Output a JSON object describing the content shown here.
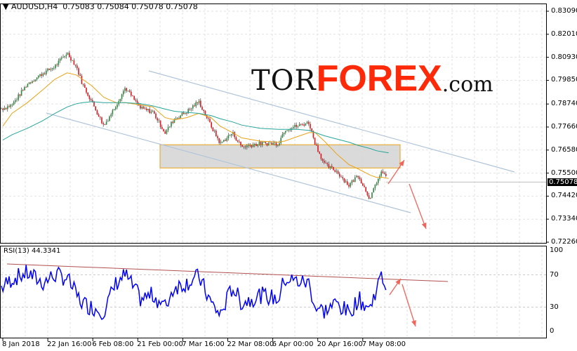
{
  "header": {
    "symbol": "AUDUSD,H4",
    "open": "0.75083",
    "high": "0.75084",
    "low": "0.75078",
    "close": "0.75078"
  },
  "logo": {
    "part1": "TOR",
    "part2": "FOREX",
    "part3": ".com"
  },
  "current_price": "0.75078",
  "rsi": {
    "label": "RSI(13) 44.3341"
  },
  "colors": {
    "bull": "#2b8a3a",
    "bear": "#e0141b",
    "ma_fast": "#e8a317",
    "ma_slow": "#27a59a",
    "channel": "#b0c4d8",
    "zone": "#d4d4d4",
    "zone_border": "#e8a317",
    "arrow": "#f0645a",
    "rsi_line": "#0000ff",
    "rsi_trend": "#b05050"
  },
  "chart_data": {
    "type": "candlestick",
    "price_axis": {
      "ticks": [
        "0.83090",
        "0.82010",
        "0.80930",
        "0.79850",
        "0.78740",
        "0.77660",
        "0.76580",
        "0.75500",
        "0.74420",
        "0.73340",
        "0.72260"
      ],
      "ylim": [
        0.7226,
        0.8309
      ]
    },
    "time_axis": {
      "ticks": [
        "8 Jan 2018",
        "22 Jan 16:00",
        "6 Feb 08:00",
        "21 Feb 00:00",
        "7 Mar 16:00",
        "22 Mar 08:00",
        "6 Apr 00:00",
        "20 Apr 16:00",
        "7 May 08:00"
      ]
    },
    "dates": [
      "2018-01-08",
      "2018-01-11",
      "2018-01-16",
      "2018-01-21",
      "2018-01-25",
      "2018-01-29",
      "2018-02-01",
      "2018-02-03",
      "2018-02-06",
      "2018-02-10",
      "2018-02-14",
      "2018-02-17",
      "2018-02-22",
      "2018-02-26",
      "2018-03-02",
      "2018-03-05",
      "2018-03-09",
      "2018-03-13",
      "2018-03-17",
      "2018-03-20",
      "2018-03-24",
      "2018-03-27",
      "2018-04-02",
      "2018-04-08",
      "2018-04-10",
      "2018-04-14",
      "2018-04-18",
      "2018-04-20",
      "2018-04-23",
      "2018-04-27",
      "2018-05-01",
      "2018-05-04",
      "2018-05-08",
      "2018-05-10",
      "2018-05-12",
      "2018-05-14"
    ],
    "close": [
      0.7853,
      0.7869,
      0.7968,
      0.8017,
      0.805,
      0.8115,
      0.805,
      0.7968,
      0.7886,
      0.7771,
      0.787,
      0.7951,
      0.7853,
      0.7837,
      0.7738,
      0.7804,
      0.7837,
      0.7886,
      0.7771,
      0.7689,
      0.7738,
      0.7673,
      0.7689,
      0.7689,
      0.7754,
      0.7771,
      0.7787,
      0.7689,
      0.7591,
      0.7558,
      0.7492,
      0.7541,
      0.7427,
      0.7509,
      0.7558,
      0.7508
    ],
    "ma_fast": [
      0.777,
      0.783,
      0.788,
      0.794,
      0.799,
      0.802,
      0.801,
      0.799,
      0.796,
      0.7905,
      0.788,
      0.788,
      0.787,
      0.786,
      0.781,
      0.78,
      0.781,
      0.783,
      0.781,
      0.777,
      0.774,
      0.7715,
      0.77,
      0.7695,
      0.77,
      0.772,
      0.774,
      0.774,
      0.77,
      0.764,
      0.759,
      0.757,
      0.754,
      0.753,
      0.753,
      0.7525
    ],
    "ma_slow": [
      0.7705,
      0.773,
      0.776,
      0.7795,
      0.783,
      0.786,
      0.7875,
      0.788,
      0.7885,
      0.788,
      0.788,
      0.788,
      0.7875,
      0.7865,
      0.785,
      0.784,
      0.7835,
      0.783,
      0.782,
      0.7805,
      0.779,
      0.7775,
      0.776,
      0.7755,
      0.7755,
      0.7755,
      0.775,
      0.774,
      0.7725,
      0.771,
      0.7695,
      0.768,
      0.7665,
      0.7655,
      0.765,
      0.7645
    ],
    "rsi_axis": {
      "ticks": [
        "100",
        "70",
        "30",
        "0"
      ],
      "ylim": [
        0,
        100
      ]
    },
    "rsi": [
      55,
      65,
      72,
      60,
      70,
      66,
      45,
      35,
      30,
      25,
      60,
      70,
      40,
      45,
      30,
      55,
      60,
      68,
      35,
      20,
      55,
      35,
      45,
      40,
      65,
      62,
      60,
      30,
      25,
      35,
      22,
      40,
      28,
      55,
      68,
      44
    ]
  }
}
